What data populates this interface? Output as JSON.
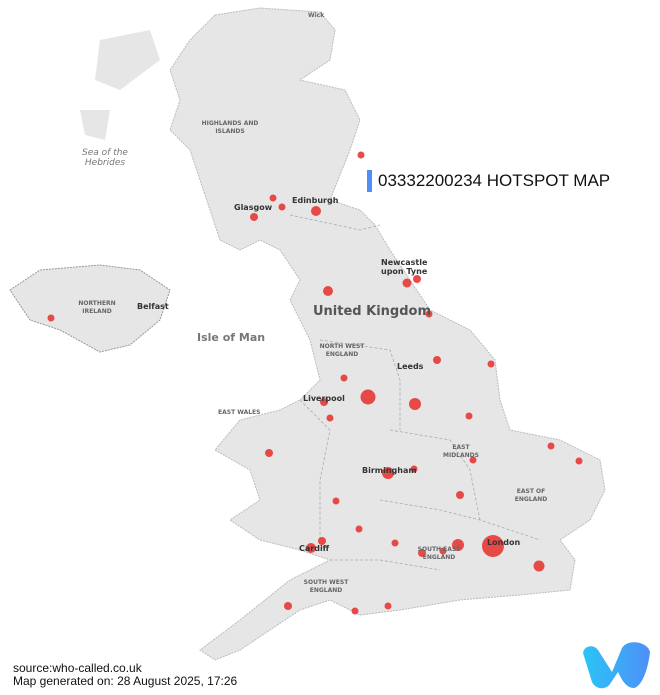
{
  "title": "03332200234 HOTSPOT MAP",
  "map_labels": {
    "wick": "Wick",
    "highlands": "HIGHLANDS AND ISLANDS",
    "sea_hebrides": "Sea of the Hebrides",
    "edinburgh": "Edinburgh",
    "glasgow": "Glasgow",
    "newcastle": "Newcastle upon Tyne",
    "northern_ireland": "NORTHERN IRELAND",
    "belfast": "Belfast",
    "isle_of_man": "Isle of Man",
    "united_kingdom": "United Kingdom",
    "north_west": "NORTH WEST ENGLAND",
    "leeds": "Leeds",
    "liverpool": "Liverpool",
    "east_wales": "EAST WALES",
    "east_midlands": "EAST MIDLANDS",
    "birmingham": "Birmingham",
    "east_of_england": "EAST OF ENGLAND",
    "cardiff": "Cardiff",
    "london": "London",
    "south_east": "SOUTH EAST ENGLAND",
    "south_west": "SOUTH WEST ENGLAND"
  },
  "colors": {
    "land": "#e6e6e6",
    "hotspot": "#e53935",
    "title_bar": "#4f8ff7"
  },
  "logo": "who-called logo",
  "footer": {
    "source": "source:who-called.co.uk",
    "generated": "Map generated on: 28 August 2025, 17:26"
  }
}
